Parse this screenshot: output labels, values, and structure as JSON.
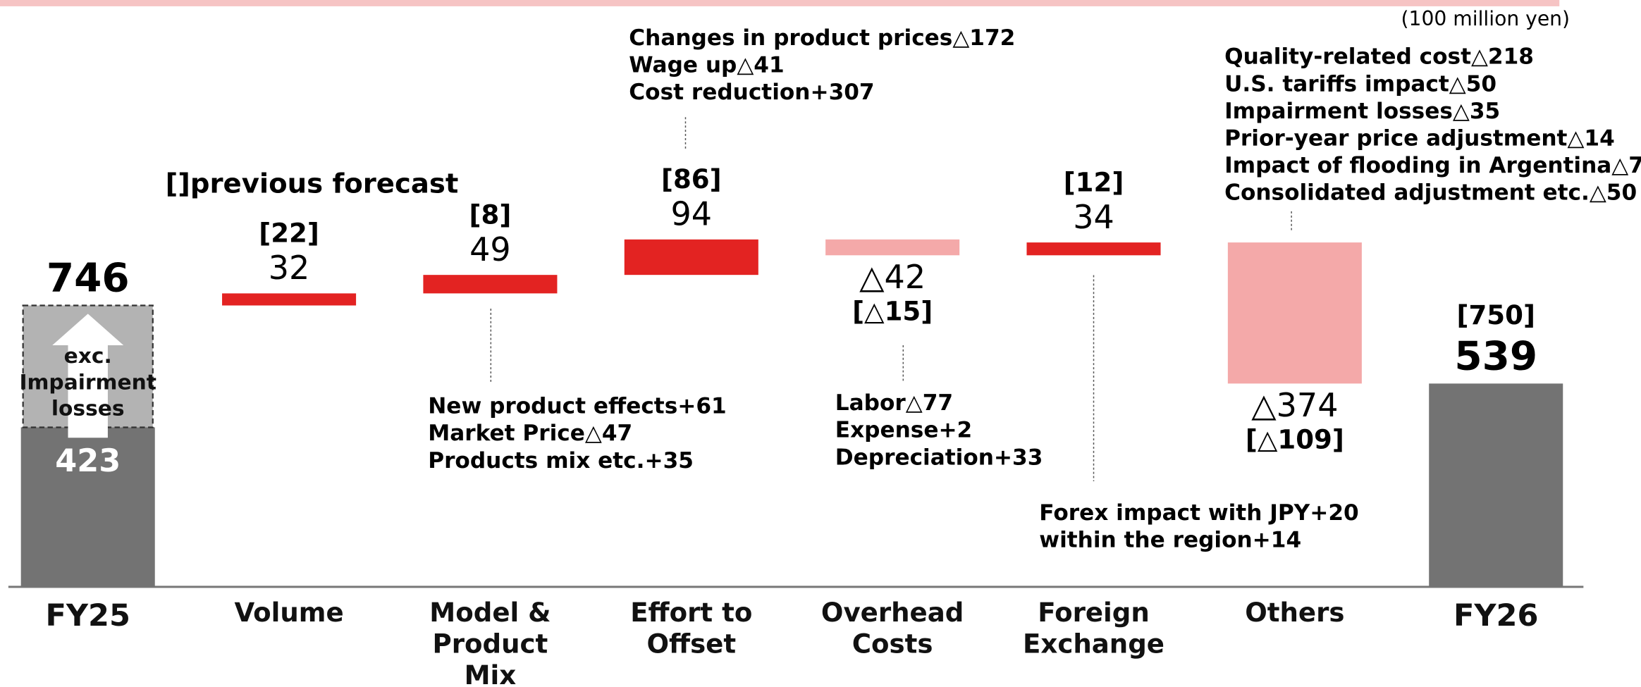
{
  "chart_data": {
    "type": "waterfall",
    "unit": "(100 million yen)",
    "legend_note": "[]previous forecast",
    "categories": [
      "FY25",
      "Volume",
      "Model & Product Mix",
      "Effort to Offset",
      "Overhead Costs",
      "Foreign Exchange",
      "Others",
      "FY26"
    ],
    "measure": [
      "total",
      "relative",
      "relative",
      "relative",
      "relative",
      "relative",
      "relative",
      "total"
    ],
    "values": [
      746,
      32,
      49,
      94,
      -42,
      34,
      -374,
      539
    ],
    "value_labels": [
      "746",
      "32",
      "49",
      "94",
      "△42",
      "34",
      "△374",
      "539"
    ],
    "previous_forecast": [
      null,
      22,
      8,
      86,
      -15,
      12,
      -109,
      750
    ],
    "previous_forecast_labels": [
      null,
      "[22]",
      "[8]",
      "[86]",
      "[△15]",
      "[12]",
      "[△109]",
      "[750]"
    ],
    "excluding": {
      "label": "exc. Impairment losses",
      "value": 423
    },
    "details": [
      null,
      null,
      [
        "New product effects+61",
        "Market Price△47",
        "Products mix etc.+35"
      ],
      [
        "Changes in product prices△172",
        "Wage up△41",
        "Cost reduction+307"
      ],
      [
        "Labor△77",
        "Expense+2",
        "Depreciation+33"
      ],
      [
        "Forex impact with JPY+20",
        "within the region+14"
      ],
      [
        "Quality-related cost△218",
        "U.S. tariffs impact△50",
        "Impairment losses△35",
        "Prior-year price adjustment△14",
        "Impact of flooding in Argentina△7",
        "Consolidated adjustment etc.△50"
      ],
      null
    ],
    "colors": {
      "total": "#737373",
      "increase": "#e32322",
      "decrease": "#f4a9a9",
      "excluded": "#b3b3b3"
    }
  }
}
